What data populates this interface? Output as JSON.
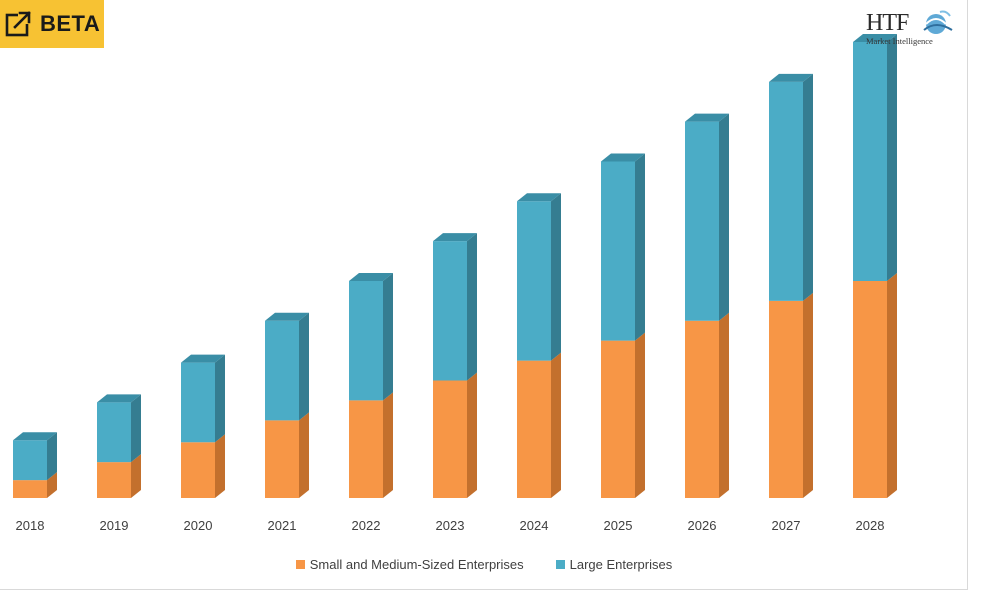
{
  "badge": {
    "label": "BETA"
  },
  "logo": {
    "main": "HTF",
    "sub": "Market Intelligence"
  },
  "colors": {
    "sme_front": "#f79646",
    "sme_side": "#c3702d",
    "sme_top": "#e07f30",
    "large_front": "#4bacc6",
    "large_side": "#357d91",
    "large_top": "#3a8ea6"
  },
  "chart_data": {
    "type": "bar",
    "stacked": true,
    "three_d": true,
    "categories": [
      "2018",
      "2019",
      "2020",
      "2021",
      "2022",
      "2023",
      "2024",
      "2025",
      "2026",
      "2027",
      "2028"
    ],
    "series": [
      {
        "name": "Small and Medium-Sized Enterprises",
        "color": "#f79646",
        "values": [
          4.5,
          9,
          14,
          19.5,
          24.5,
          29.5,
          34.5,
          39.5,
          44.5,
          49.5,
          54.5
        ]
      },
      {
        "name": "Large Enterprises",
        "color": "#4bacc6",
        "values": [
          10,
          15,
          20,
          25,
          30,
          35,
          40,
          45,
          50,
          55,
          60
        ]
      }
    ],
    "title": "",
    "xlabel": "",
    "ylabel": "",
    "ylim": [
      0,
      115
    ],
    "grid": false,
    "y_axis_visible": false,
    "legend": "bottom"
  }
}
